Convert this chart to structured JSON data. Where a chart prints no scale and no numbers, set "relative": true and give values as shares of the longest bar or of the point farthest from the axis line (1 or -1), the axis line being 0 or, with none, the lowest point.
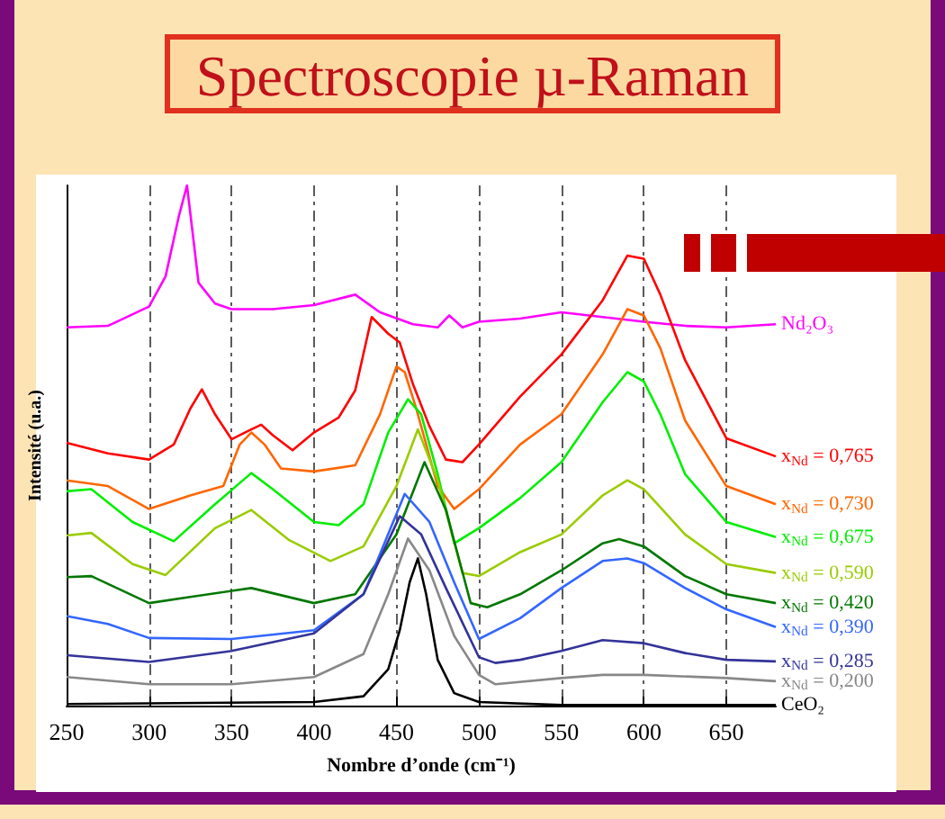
{
  "chart_data": {
    "type": "line",
    "title": "Spectroscopie µ-Raman",
    "xlabel": "Nombre d’onde (cm⁻¹)",
    "ylabel": "Intensité (u.a.)",
    "relative": true,
    "xlim": [
      250,
      680
    ],
    "xticks": [
      250,
      300,
      350,
      400,
      450,
      500,
      550,
      600,
      650
    ],
    "tick_labels": "x",
    "grid": "x",
    "marker": "none",
    "series": [
      {
        "name": "Nd₂O₃",
        "color": "#ff00ff",
        "x": [
          250,
          275,
          300,
          310,
          318,
          323,
          330,
          340,
          350,
          375,
          400,
          425,
          440,
          460,
          475,
          482,
          490,
          500,
          525,
          550,
          575,
          600,
          625,
          650,
          680
        ],
        "values": [
          0.727,
          0.73,
          0.767,
          0.825,
          0.94,
          1.0,
          0.813,
          0.773,
          0.762,
          0.762,
          0.77,
          0.79,
          0.756,
          0.733,
          0.727,
          0.75,
          0.727,
          0.738,
          0.744,
          0.756,
          0.747,
          0.738,
          0.73,
          0.727,
          0.733
        ]
      },
      {
        "name": "x$_{Nd}$ = 0,765",
        "color": "#ff0000",
        "x": [
          250,
          275,
          300,
          315,
          325,
          332,
          340,
          350,
          360,
          368,
          375,
          387,
          400,
          415,
          425,
          435,
          445,
          452,
          460,
          470,
          480,
          490,
          500,
          525,
          550,
          575,
          590,
          600,
          610,
          625,
          650,
          680
        ],
        "values": [
          0.505,
          0.485,
          0.473,
          0.502,
          0.571,
          0.608,
          0.56,
          0.512,
          0.528,
          0.54,
          0.52,
          0.491,
          0.525,
          0.554,
          0.606,
          0.747,
          0.715,
          0.698,
          0.618,
          0.537,
          0.473,
          0.468,
          0.502,
          0.594,
          0.675,
          0.779,
          0.865,
          0.859,
          0.79,
          0.664,
          0.514,
          0.479
        ]
      },
      {
        "name": "x$_{Nd}$ = 0,730",
        "color": "#ff6600",
        "x": [
          250,
          275,
          300,
          325,
          345,
          355,
          362,
          370,
          380,
          400,
          425,
          440,
          450,
          455,
          462,
          475,
          485,
          500,
          525,
          550,
          575,
          590,
          600,
          610,
          625,
          650,
          680
        ],
        "values": [
          0.433,
          0.422,
          0.378,
          0.404,
          0.422,
          0.502,
          0.525,
          0.502,
          0.456,
          0.45,
          0.462,
          0.56,
          0.652,
          0.641,
          0.571,
          0.422,
          0.378,
          0.416,
          0.502,
          0.56,
          0.675,
          0.762,
          0.75,
          0.687,
          0.548,
          0.422,
          0.387
        ]
      },
      {
        "name": "x$_{Nd}$ = 0,675",
        "color": "#00ee00",
        "x": [
          250,
          265,
          290,
          315,
          340,
          362,
          375,
          400,
          415,
          430,
          445,
          457,
          465,
          475,
          485,
          500,
          525,
          550,
          575,
          590,
          600,
          610,
          625,
          650,
          680
        ],
        "values": [
          0.412,
          0.416,
          0.353,
          0.316,
          0.387,
          0.447,
          0.416,
          0.353,
          0.347,
          0.387,
          0.525,
          0.589,
          0.56,
          0.445,
          0.312,
          0.341,
          0.399,
          0.468,
          0.583,
          0.641,
          0.623,
          0.56,
          0.445,
          0.353,
          0.324
        ]
      },
      {
        "name": "x$_{Nd}$ = 0,590",
        "color": "#99cc00",
        "x": [
          250,
          265,
          290,
          310,
          340,
          362,
          385,
          410,
          430,
          450,
          463,
          475,
          490,
          500,
          525,
          550,
          575,
          590,
          600,
          625,
          650,
          680
        ],
        "values": [
          0.327,
          0.332,
          0.272,
          0.251,
          0.341,
          0.376,
          0.318,
          0.278,
          0.306,
          0.422,
          0.531,
          0.433,
          0.255,
          0.249,
          0.295,
          0.329,
          0.404,
          0.433,
          0.416,
          0.329,
          0.272,
          0.255
        ]
      },
      {
        "name": "x$_{Nd}$ = 0,420",
        "color": "#007700",
        "x": [
          250,
          265,
          300,
          325,
          362,
          400,
          425,
          450,
          467,
          480,
          495,
          505,
          525,
          550,
          575,
          585,
          600,
          625,
          650,
          680
        ],
        "values": [
          0.247,
          0.249,
          0.197,
          0.209,
          0.226,
          0.197,
          0.214,
          0.329,
          0.468,
          0.376,
          0.197,
          0.189,
          0.214,
          0.26,
          0.312,
          0.32,
          0.306,
          0.249,
          0.214,
          0.197
        ]
      },
      {
        "name": "x$_{Nd}$ = 0,390",
        "color": "#3366ff",
        "x": [
          250,
          275,
          300,
          350,
          400,
          430,
          455,
          470,
          485,
          500,
          525,
          550,
          575,
          590,
          600,
          625,
          650,
          680
        ],
        "values": [
          0.172,
          0.157,
          0.13,
          0.128,
          0.145,
          0.214,
          0.407,
          0.353,
          0.237,
          0.128,
          0.168,
          0.226,
          0.278,
          0.283,
          0.274,
          0.226,
          0.185,
          0.151
        ]
      },
      {
        "name": "x$_{Nd}$ = 0,285",
        "color": "#333399",
        "x": [
          250,
          300,
          350,
          400,
          430,
          452,
          465,
          480,
          500,
          510,
          525,
          550,
          575,
          600,
          625,
          650,
          680
        ],
        "values": [
          0.097,
          0.084,
          0.105,
          0.139,
          0.214,
          0.364,
          0.329,
          0.226,
          0.093,
          0.082,
          0.088,
          0.105,
          0.126,
          0.12,
          0.101,
          0.088,
          0.085
        ]
      },
      {
        "name": "x$_{Nd}$ = 0,200",
        "color": "#888888",
        "x": [
          250,
          300,
          350,
          400,
          430,
          445,
          457,
          470,
          485,
          500,
          510,
          550,
          575,
          600,
          650,
          680
        ],
        "values": [
          0.055,
          0.041,
          0.041,
          0.055,
          0.099,
          0.214,
          0.321,
          0.26,
          0.134,
          0.059,
          0.041,
          0.053,
          0.059,
          0.059,
          0.053,
          0.047
        ]
      },
      {
        "name": "CeO₂",
        "color": "#000000",
        "x": [
          250,
          400,
          430,
          445,
          452,
          458,
          463,
          468,
          475,
          485,
          500,
          550,
          680
        ],
        "values": [
          0.003,
          0.007,
          0.018,
          0.07,
          0.145,
          0.237,
          0.283,
          0.214,
          0.088,
          0.024,
          0.007,
          0.001,
          0.001
        ]
      }
    ]
  }
}
